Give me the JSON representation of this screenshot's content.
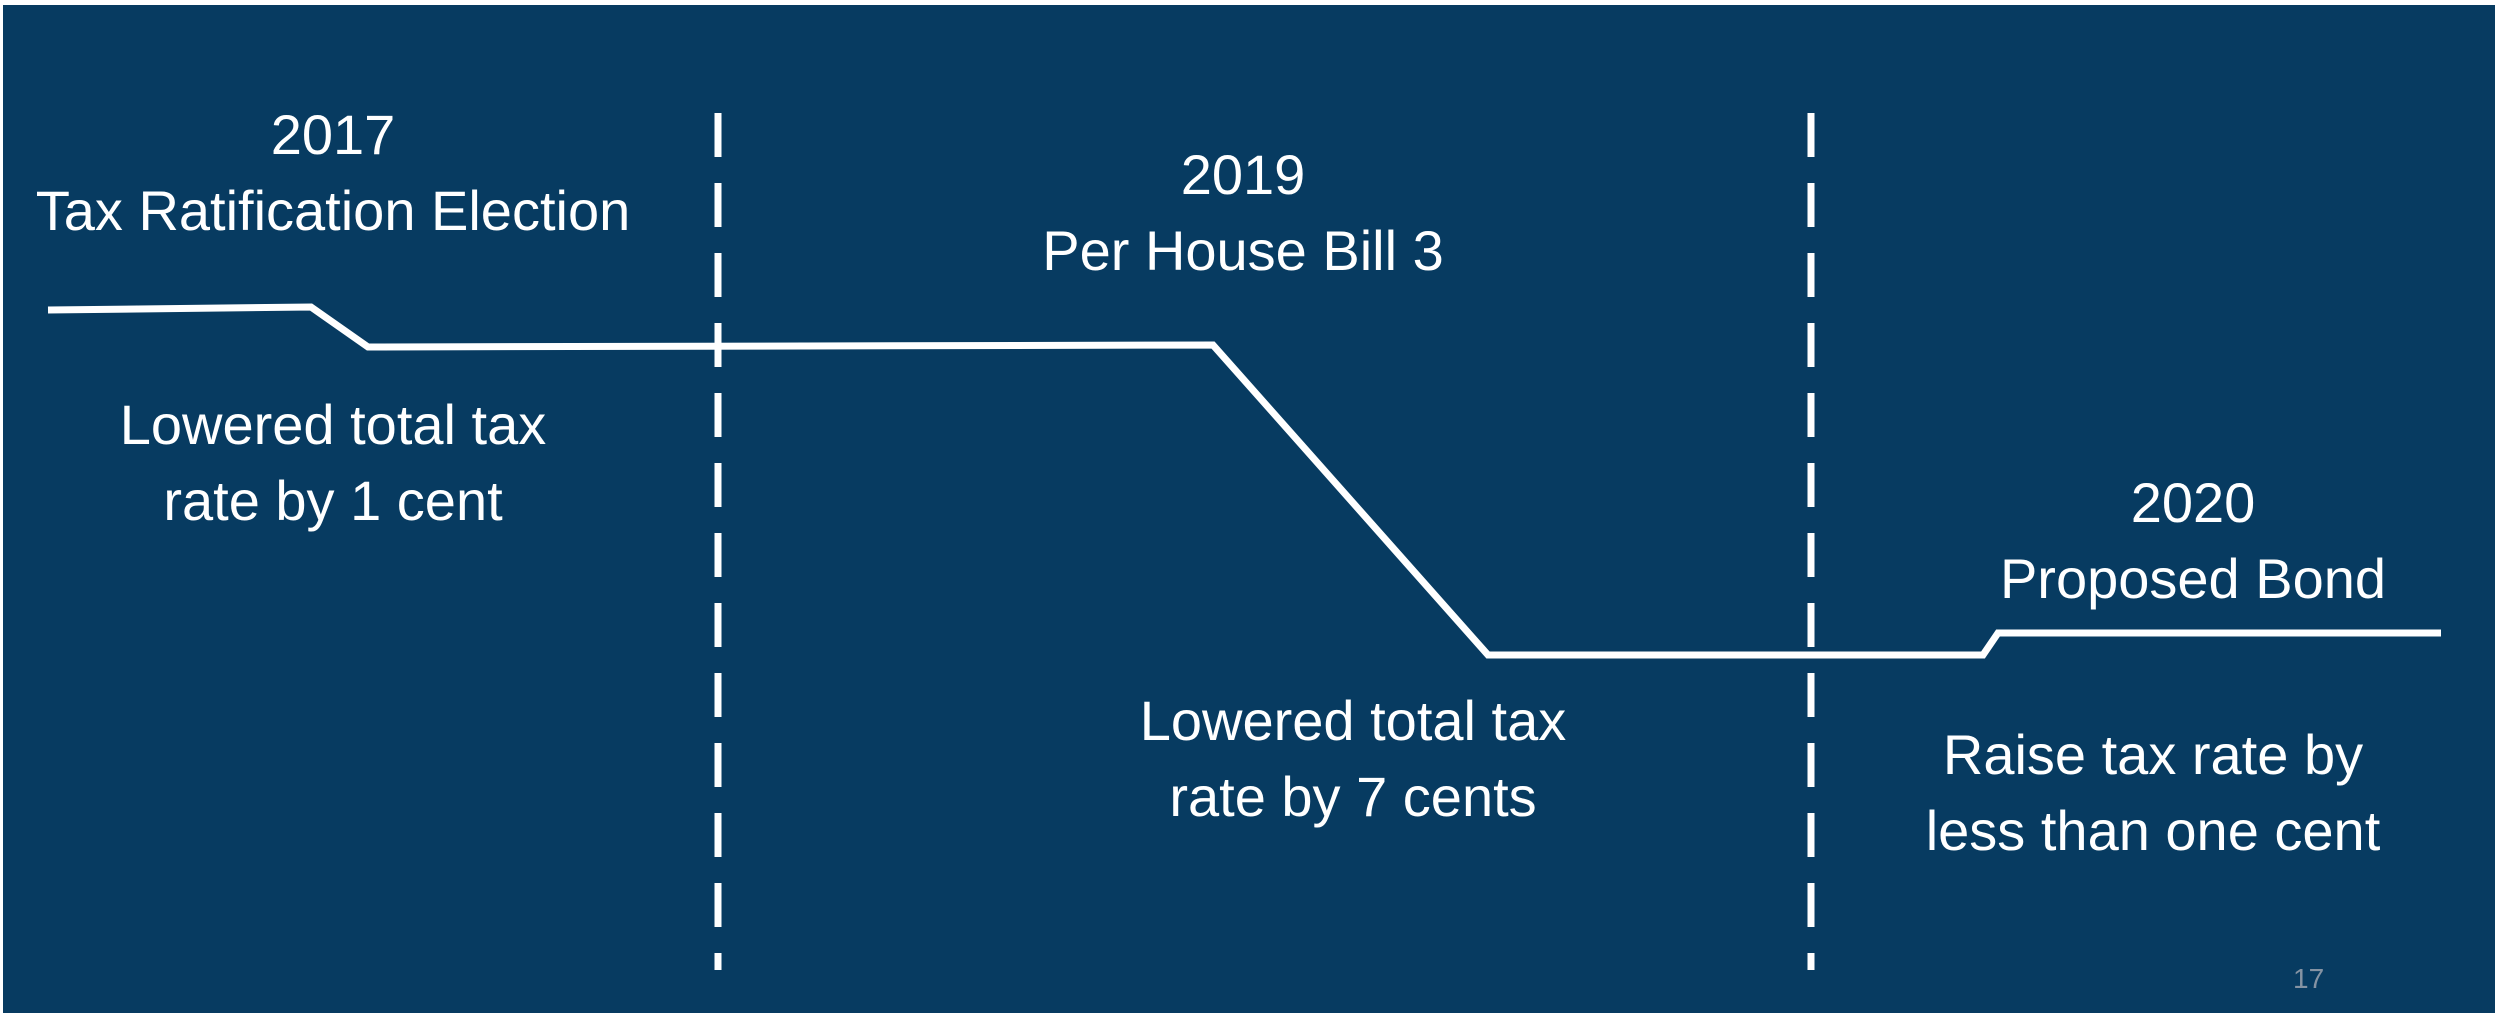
{
  "colors": {
    "background": "#073b61",
    "line": "#ffffff",
    "text": "#ffffff",
    "page_number": "#8593a3"
  },
  "periods": [
    {
      "year": "2017",
      "event": "Tax Ratification Election",
      "note_line1": "Lowered total tax",
      "note_line2": "rate by 1 cent"
    },
    {
      "year": "2019",
      "event": "Per House Bill 3",
      "note_line1": "Lowered total tax",
      "note_line2": "rate by 7 cents"
    },
    {
      "year": "2020",
      "event": "Proposed Bond",
      "note_line1": "Raise tax rate by",
      "note_line2": "less than one cent"
    }
  ],
  "page_number": "17"
}
